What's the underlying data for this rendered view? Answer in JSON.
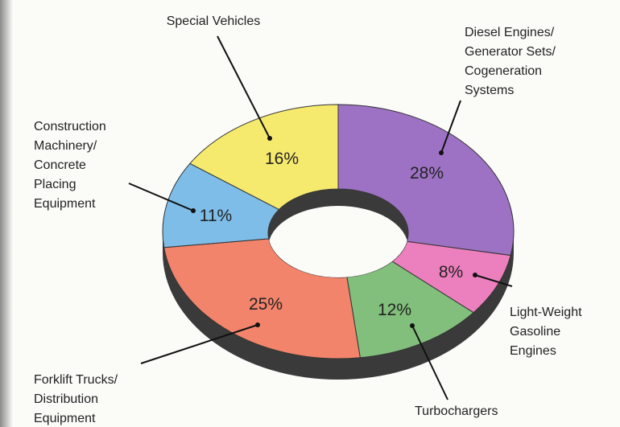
{
  "chart_data": {
    "type": "donut",
    "categories": [
      "Diesel Engines/\nGenerator Sets/\nCogeneration\nSystems",
      "Light-Weight\nGasoline\nEngines",
      "Turbochargers",
      "Forklift Trucks/\nDistribution\nEquipment",
      "Construction\nMachinery/\nConcrete\nPlacing\nEquipment",
      "Special Vehicles"
    ],
    "values": [
      28,
      8,
      12,
      25,
      11,
      16
    ],
    "value_labels": [
      "28%",
      "8%",
      "12%",
      "25%",
      "11%",
      "16%"
    ],
    "colors": [
      "#9d72c4",
      "#ec7fbd",
      "#82bf7c",
      "#f2846b",
      "#7dbde8",
      "#f6ea6e"
    ]
  }
}
